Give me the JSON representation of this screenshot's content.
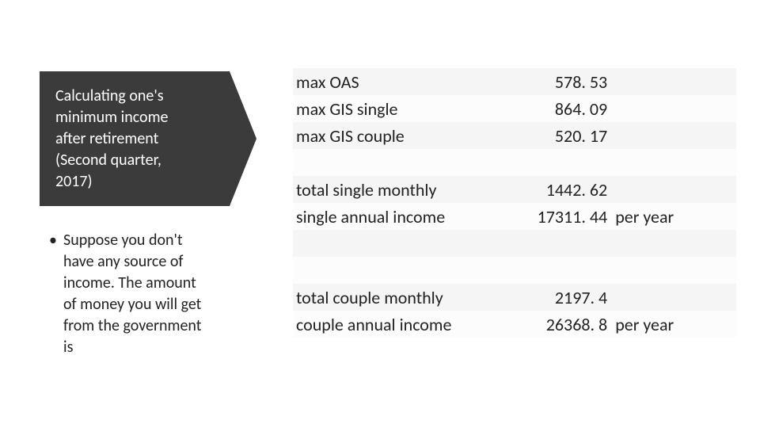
{
  "title": "Calculating one's minimum income after retirement (Second quarter, 2017)",
  "bullet_text": "Suppose you don't have any source of income. The amount of money you will get from the government is",
  "table": {
    "rows": [
      {
        "label": "max OAS",
        "value": "578. 53",
        "note": "",
        "shade": "odd"
      },
      {
        "label": "max GIS single",
        "value": "864. 09",
        "note": "",
        "shade": "even"
      },
      {
        "label": "max GIS couple",
        "value": "520. 17",
        "note": "",
        "shade": "odd"
      },
      {
        "label": "",
        "value": "",
        "note": "",
        "shade": "even"
      },
      {
        "label": "total single monthly",
        "value": "1442. 62",
        "note": "",
        "shade": "odd"
      },
      {
        "label": "single annual income",
        "value": "17311. 44",
        "note": "per year",
        "shade": "even"
      },
      {
        "label": "",
        "value": "",
        "note": "",
        "shade": "odd"
      },
      {
        "label": "",
        "value": "",
        "note": "",
        "shade": "even"
      },
      {
        "label": "total couple monthly",
        "value": "2197. 4",
        "note": "",
        "shade": "odd"
      },
      {
        "label": "couple annual income",
        "value": "26368. 8",
        "note": "per year",
        "shade": "even"
      }
    ]
  },
  "style": {
    "title_bg": "#3b3b3b",
    "title_color": "#ffffff",
    "title_fontsize": 20,
    "body_fontsize": 20,
    "table_fontsize": 22,
    "row_shade_odd": "#f5f5f5",
    "row_shade_even": "#fcfcfc",
    "text_color": "#222222",
    "slide_bg": "#ffffff"
  }
}
